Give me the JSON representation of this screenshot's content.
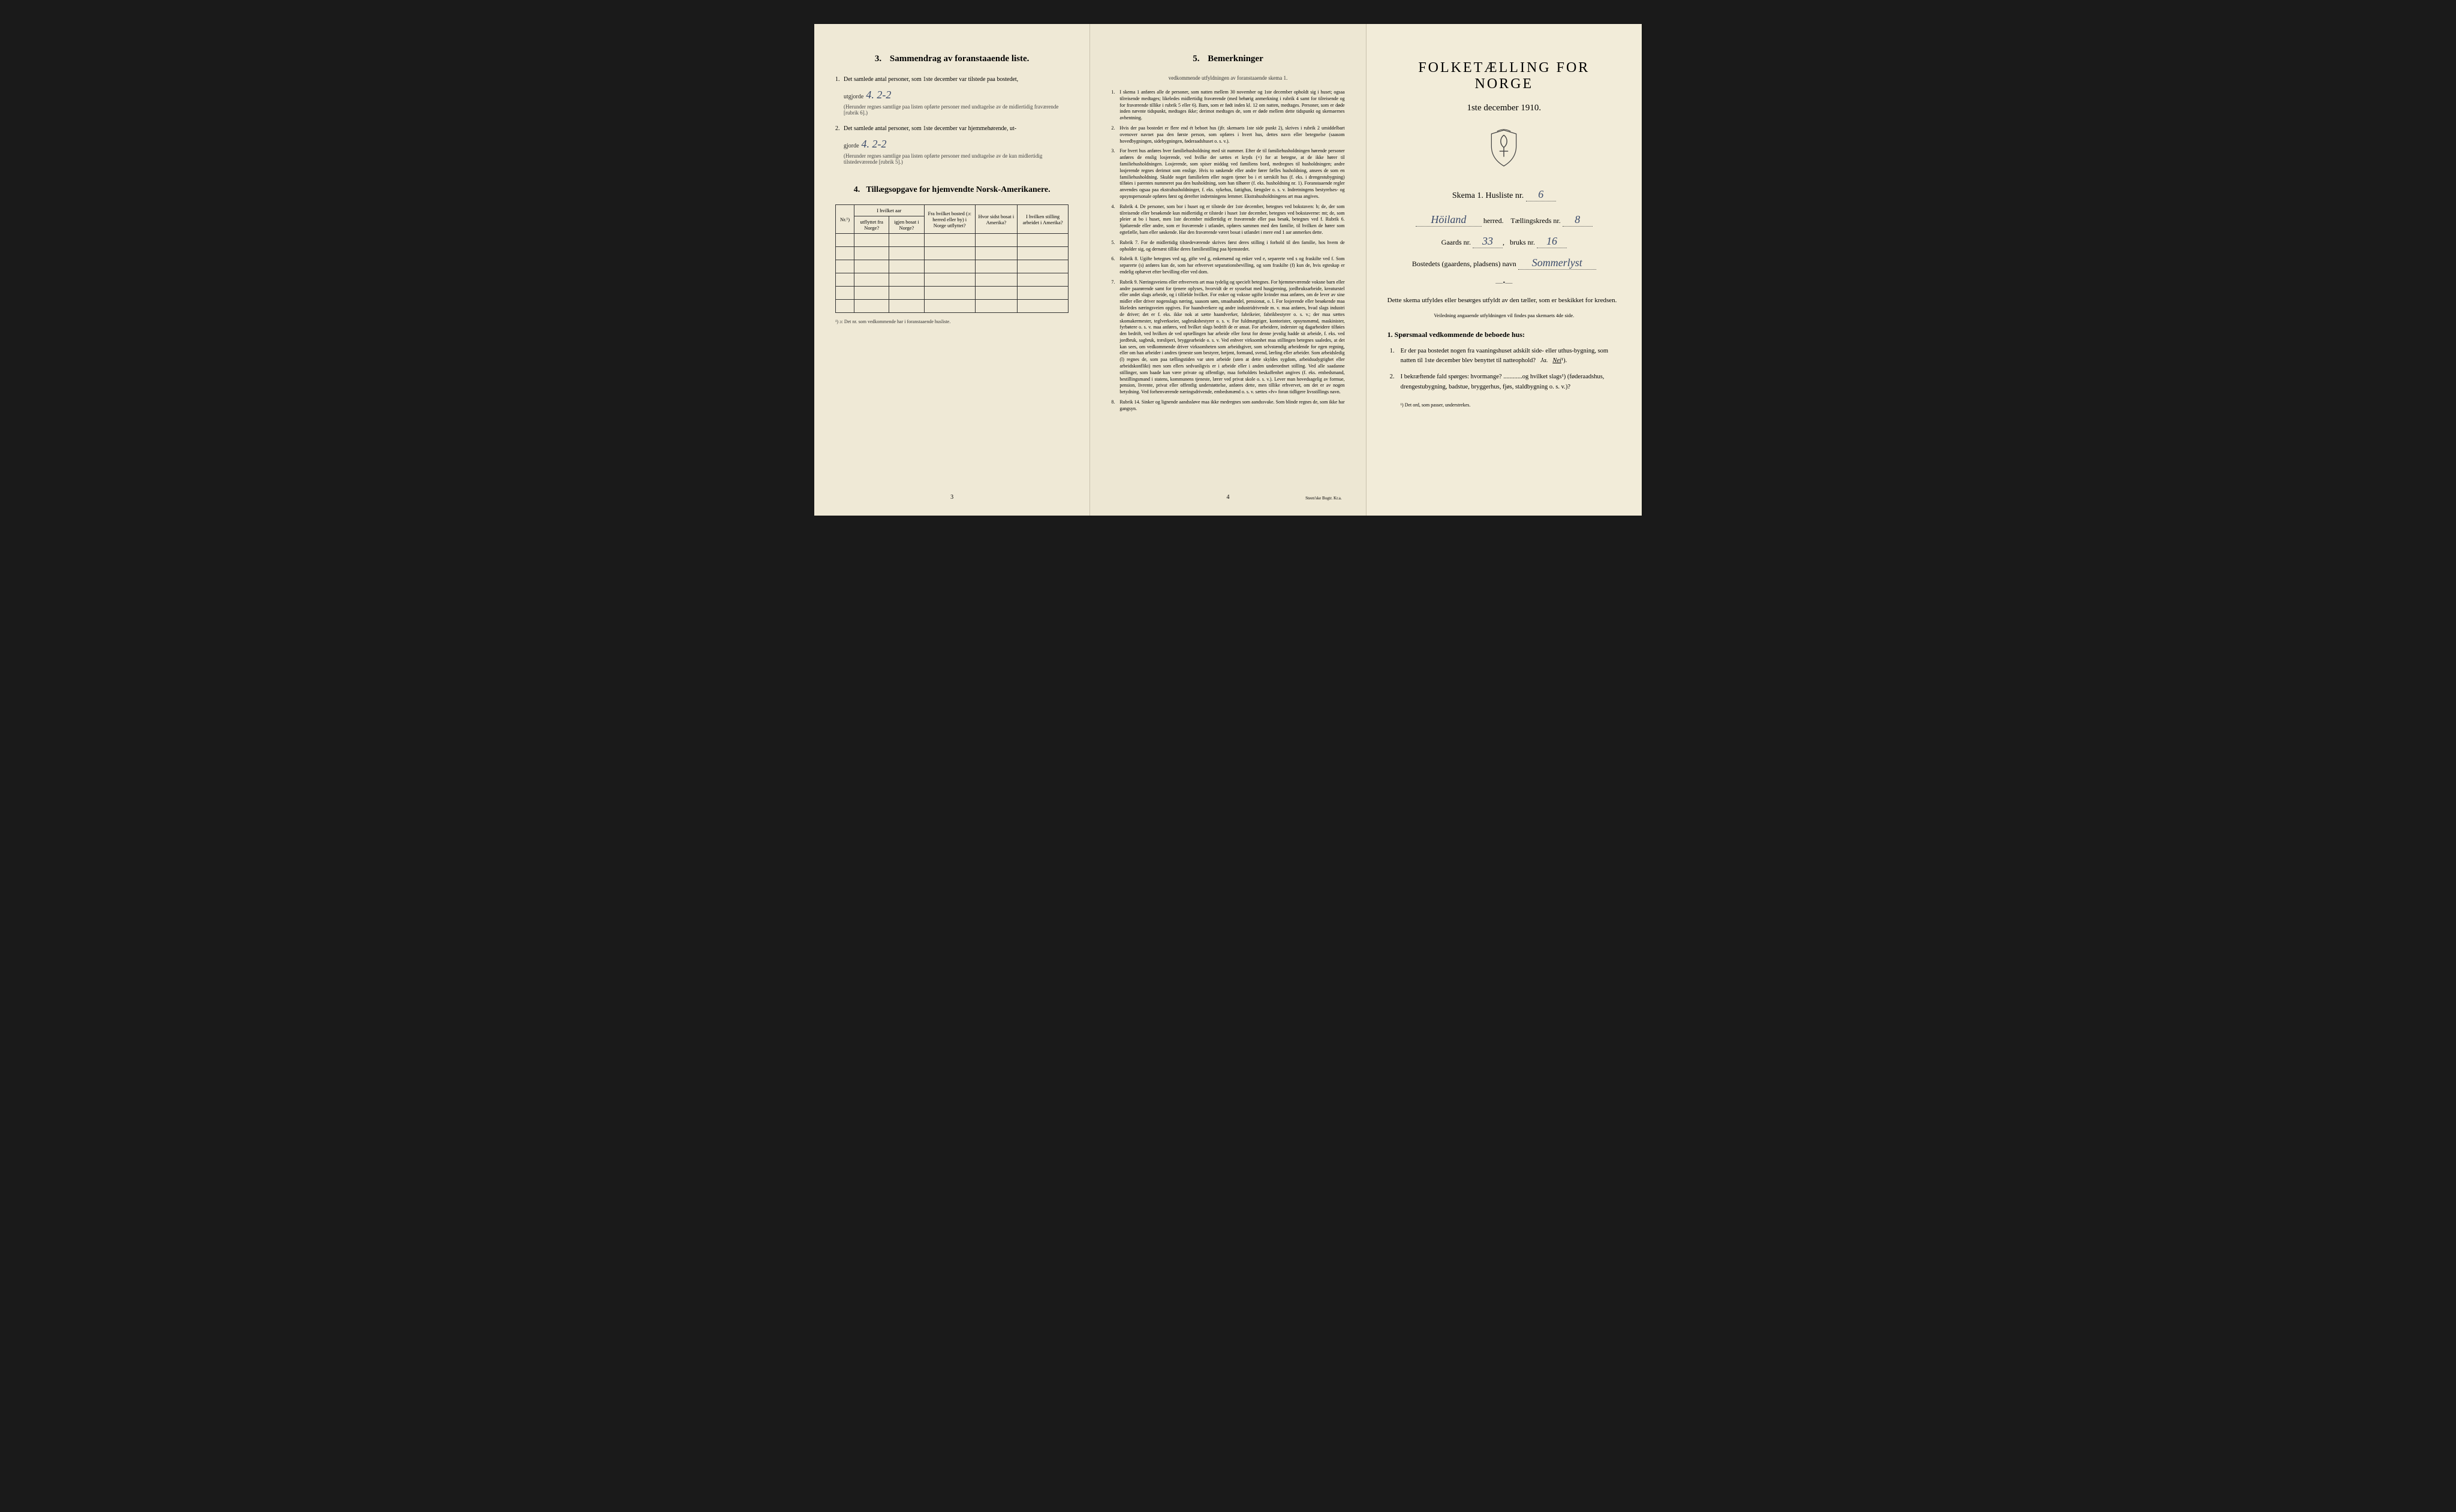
{
  "colors": {
    "paper1": "#efe9d6",
    "paper2": "#ede7d3",
    "paper3": "#f2ecd9",
    "ink": "#2a2a2a",
    "handwriting": "#3a4a6a",
    "background": "#1a1a1a"
  },
  "page1": {
    "section3_title": "Sammendrag av foranstaaende liste.",
    "section3_num": "3.",
    "q1_text": "Det samlede antal personer, som 1ste december var tilstede paa bostedet,",
    "q1_label": "utgjorde",
    "q1_value": "4. 2-2",
    "q1_note": "(Herunder regnes samtlige paa listen opførte personer med undtagelse av de midlertidig fraværende [rubrik 6].)",
    "q2_text": "Det samlede antal personer, som 1ste december var hjemmehørende, ut-",
    "q2_label": "gjorde",
    "q2_value": "4. 2-2",
    "q2_note": "(Herunder regnes samtlige paa listen opførte personer med undtagelse av de kun midlertidig tilstedeværende [rubrik 5].)",
    "section4_title": "Tillægsopgave for hjemvendte Norsk-Amerikanere.",
    "section4_num": "4.",
    "table": {
      "col_nr": "Nr.¹)",
      "col_year_header": "I hvilket aar",
      "col_year_out": "utflyttet fra Norge?",
      "col_year_back": "igjen bosat i Norge?",
      "col_from": "Fra hvilket bosted (ɔ: herred eller by) i Norge utflyttet?",
      "col_last": "Hvor sidst bosat i Amerika?",
      "col_job": "I hvilken stilling arbeidet i Amerika?",
      "empty_rows": 6
    },
    "footnote": "¹) ɔ: Det nr. som vedkommende har i foranstaaende husliste.",
    "page_num": "3"
  },
  "page2": {
    "title_num": "5.",
    "title": "Bemerkninger",
    "subtitle": "vedkommende utfyldningen av foranstaaende skema 1.",
    "items": [
      {
        "n": "1.",
        "text": "I skema 1 anføres alle de personer, som natten mellem 30 november og 1ste december opholdt sig i huset; ogsaa tilreisende medtages; likeledes midlertidig fraværende (med behørig anmerkning i rubrik 4 samt for tilreisende og for fraværende tillike i rubrik 5 eller 6). Barn, som er født inden kl. 12 om natten, medtages. Personer, som er døde inden nævnte tidspunkt, medtages ikke; derimot medtages de, som er døde mellem dette tidspunkt og skemaernes avhentning."
      },
      {
        "n": "2.",
        "text": "Hvis der paa bostedet er flere end ét beboet hus (jfr. skemaets 1ste side punkt 2), skrives i rubrik 2 umiddelbart ovenover navnet paa den første person, som opføres i hvert hus, dettes navn eller betegnelse (saasom hovedbygningen, sidebygningen, føderaadshuset o. s. v.)."
      },
      {
        "n": "3.",
        "text": "For hvert hus anføres hver familiehusholdning med sit nummer. Efter de til familiehusholdningen hørende personer anføres de enslig losjerende, ved hvilke der sættes et kryds (×) for at betegne, at de ikke hører til familiehusholdningen. Losjerende, som spiser middag ved familiens bord, medregnes til husholdningen; andre losjerende regnes derimot som enslige. Hvis to søskende eller andre fører fælles husholdning, ansees de som en familiehusholdning. Skulde noget familielem eller nogen tjener bo i et særskilt hus (f. eks. i drengestubygning) tilføies i parentes nummeret paa den husholdning, som han tilhører (f. eks. husholdning nr. 1).        Foranstaaende regler anvendes ogsaa paa ekstrahusholdninger, f. eks. sykehus, fattighus, fængsler o. s. v. Indretningens bestyrelses- og opsynspersonale opføres først og derefter indretningens lemmer. Ekstrahusholdningens art maa angives."
      },
      {
        "n": "4.",
        "text": "Rubrik 4. De personer, som bor i huset og er tilstede der 1ste december, betegnes ved bokstaven: b; de, der som tilreisende eller besøkende kun midlertidig er tilstede i huset 1ste december, betegnes ved bokstaverne: mt; de, som pleier at bo i huset, men 1ste december midlertidig er fraværende eller paa besøk, betegnes ved f.        Rubrik 6. Sjøfarende eller andre, som er fraværende i utlandet, opføres sammen med den familie, til hvilken de hører som egtefælle, barn eller søskende.        Har den fraværende været bosat i utlandet i mere end 1 aar anmerkes dette."
      },
      {
        "n": "5.",
        "text": "Rubrik 7. For de midlertidig tilstedeværende skrives først deres stilling i forhold til den familie, hos hvem de opholder sig, og dernæst tillike deres familiestilling paa hjemstedet."
      },
      {
        "n": "6.",
        "text": "Rubrik 8. Ugifte betegnes ved ug, gifte ved g, enkemænd og enker ved e, separerte ved s og fraskilte ved f. Som separerte (s) anføres kun de, som har erhvervet separationsbevilling, og som fraskilte (f) kun de, hvis egteskap er endelig ophævet efter bevilling eller ved dom."
      },
      {
        "n": "7.",
        "text": "Rubrik 9. Næringsveiens eller erhvervets art maa tydelig og specielt betegnes.        For hjemmeværende voksne barn eller andre paarørende samt for tjenere oplyses, hvorvidt de er sysselsat med husgjerning, jordbruksarbeide, kreaturstel eller andet slags arbeide, og i tilfælde hvilket. For enker og voksne ugifte kvinder maa anføres, om de lever av sine midler eller driver nogenslags næring, saasom søm, smaahandel, pensionat, o. l.        For losjerende eller besøkende maa likeledes næringsveien opgives.        For haandverkere og andre industridrivende m. v. maa anføres, hvad slags industri de driver; det er f. eks. ikke nok at sætte haandverker, fabrikeier, fabrikbestyrer o. s. v.; der maa sættes skomakermester, teglverkseier, sagbruksbestyrer o. s. v.        For fuldmægtiger, kontorister, opsynsmænd, maskinister, fyrbøtere o. s. v. maa anføres, ved hvilket slags bedrift de er ansat.        For arbeidere, inderster og dagarbeidere tilføies den bedrift, ved hvilken de ved optællingen har arbeide eller forut for denne jevnlig hadde sit arbeide, f. eks. ved jordbruk, sagbruk, træsliperi, bryggearbeide o. s. v.        Ved enhver virksomhet maa stillingen betegnes saaledes, at det kan sees, om vedkommende driver virksomheten som arbeidsgiver, som selvstændig arbeidende for egen regning, eller om han arbeider i andres tjeneste som bestyrer, betjent, formand, svend, lærling eller arbeider.        Som arbeidsledig (l) regnes de, som paa tællingstiden var uten arbeide (uten at dette skyldes sygdom, arbeidsudygtighet eller arbeidskonflikt) men som ellers sedvanligvis er i arbeide eller i anden underordnet stilling.        Ved alle saadanne stillinger, som baade kan være private og offentlige, maa forholdets beskaffenhet angives (f. eks. embedsmand, bestillingsmand i statens, kommunens tjeneste, lærer ved privat skole o. s. v.).        Lever man hovedsagelig av formue, pension, livrente, privat eller offentlig understøttelse, anføres dette, men tillike erhvervet, om det er av nogen betydning.        Ved forhenværende næringsdrivende, embedsmænd o. s. v. sættes «fv» foran tidligere livsstillings navn."
      },
      {
        "n": "8.",
        "text": "Rubrik 14. Sinker og lignende aandssløve maa ikke medregnes som aandssvake. Som blinde regnes de, som ikke har gangsyn."
      }
    ],
    "page_num": "4",
    "printer": "Steen'ske Bogtr. Kr.a."
  },
  "page3": {
    "main_title": "FOLKETÆLLING FOR NORGE",
    "date_line": "1ste december 1910.",
    "skema_label": "Skema 1.  Husliste nr.",
    "skema_value": "6",
    "herred_value": "Höiland",
    "herred_label": "herred.",
    "kreds_label": "Tællingskreds nr.",
    "kreds_value": "8",
    "gaard_label": "Gaards nr.",
    "gaard_value": "33",
    "bruk_label": "bruks nr.",
    "bruk_value": "16",
    "bosted_label": "Bostedets (gaardens, pladsens) navn",
    "bosted_value": "Sommerlyst",
    "instruct": "Dette skema utfyldes eller besørges utfyldt av den tæller, som er beskikket for kredsen.",
    "small_note": "Veiledning angaaende utfyldningen vil findes paa skemaets 4de side.",
    "q_heading_num": "1.",
    "q_heading": "Spørsmaal vedkommende de beboede hus:",
    "q1_num": "1.",
    "q1_text_a": "Er der paa bostedet nogen fra vaaningshuset adskilt side- eller uthus-bygning, som natten til 1ste december blev benyttet til natteophold?",
    "q1_ja": "Ja.",
    "q1_nei": "Nei",
    "q1_sup": "¹).",
    "q2_num": "2.",
    "q2_text": "I bekræftende fald spørges: hvormange? ............og hvilket slags¹) (føderaadshus, drengestubygning, badstue, bryggerhus, fjøs, staldbygning o. s. v.)?",
    "tiny_foot": "¹) Det ord, som passer, understrekes."
  }
}
